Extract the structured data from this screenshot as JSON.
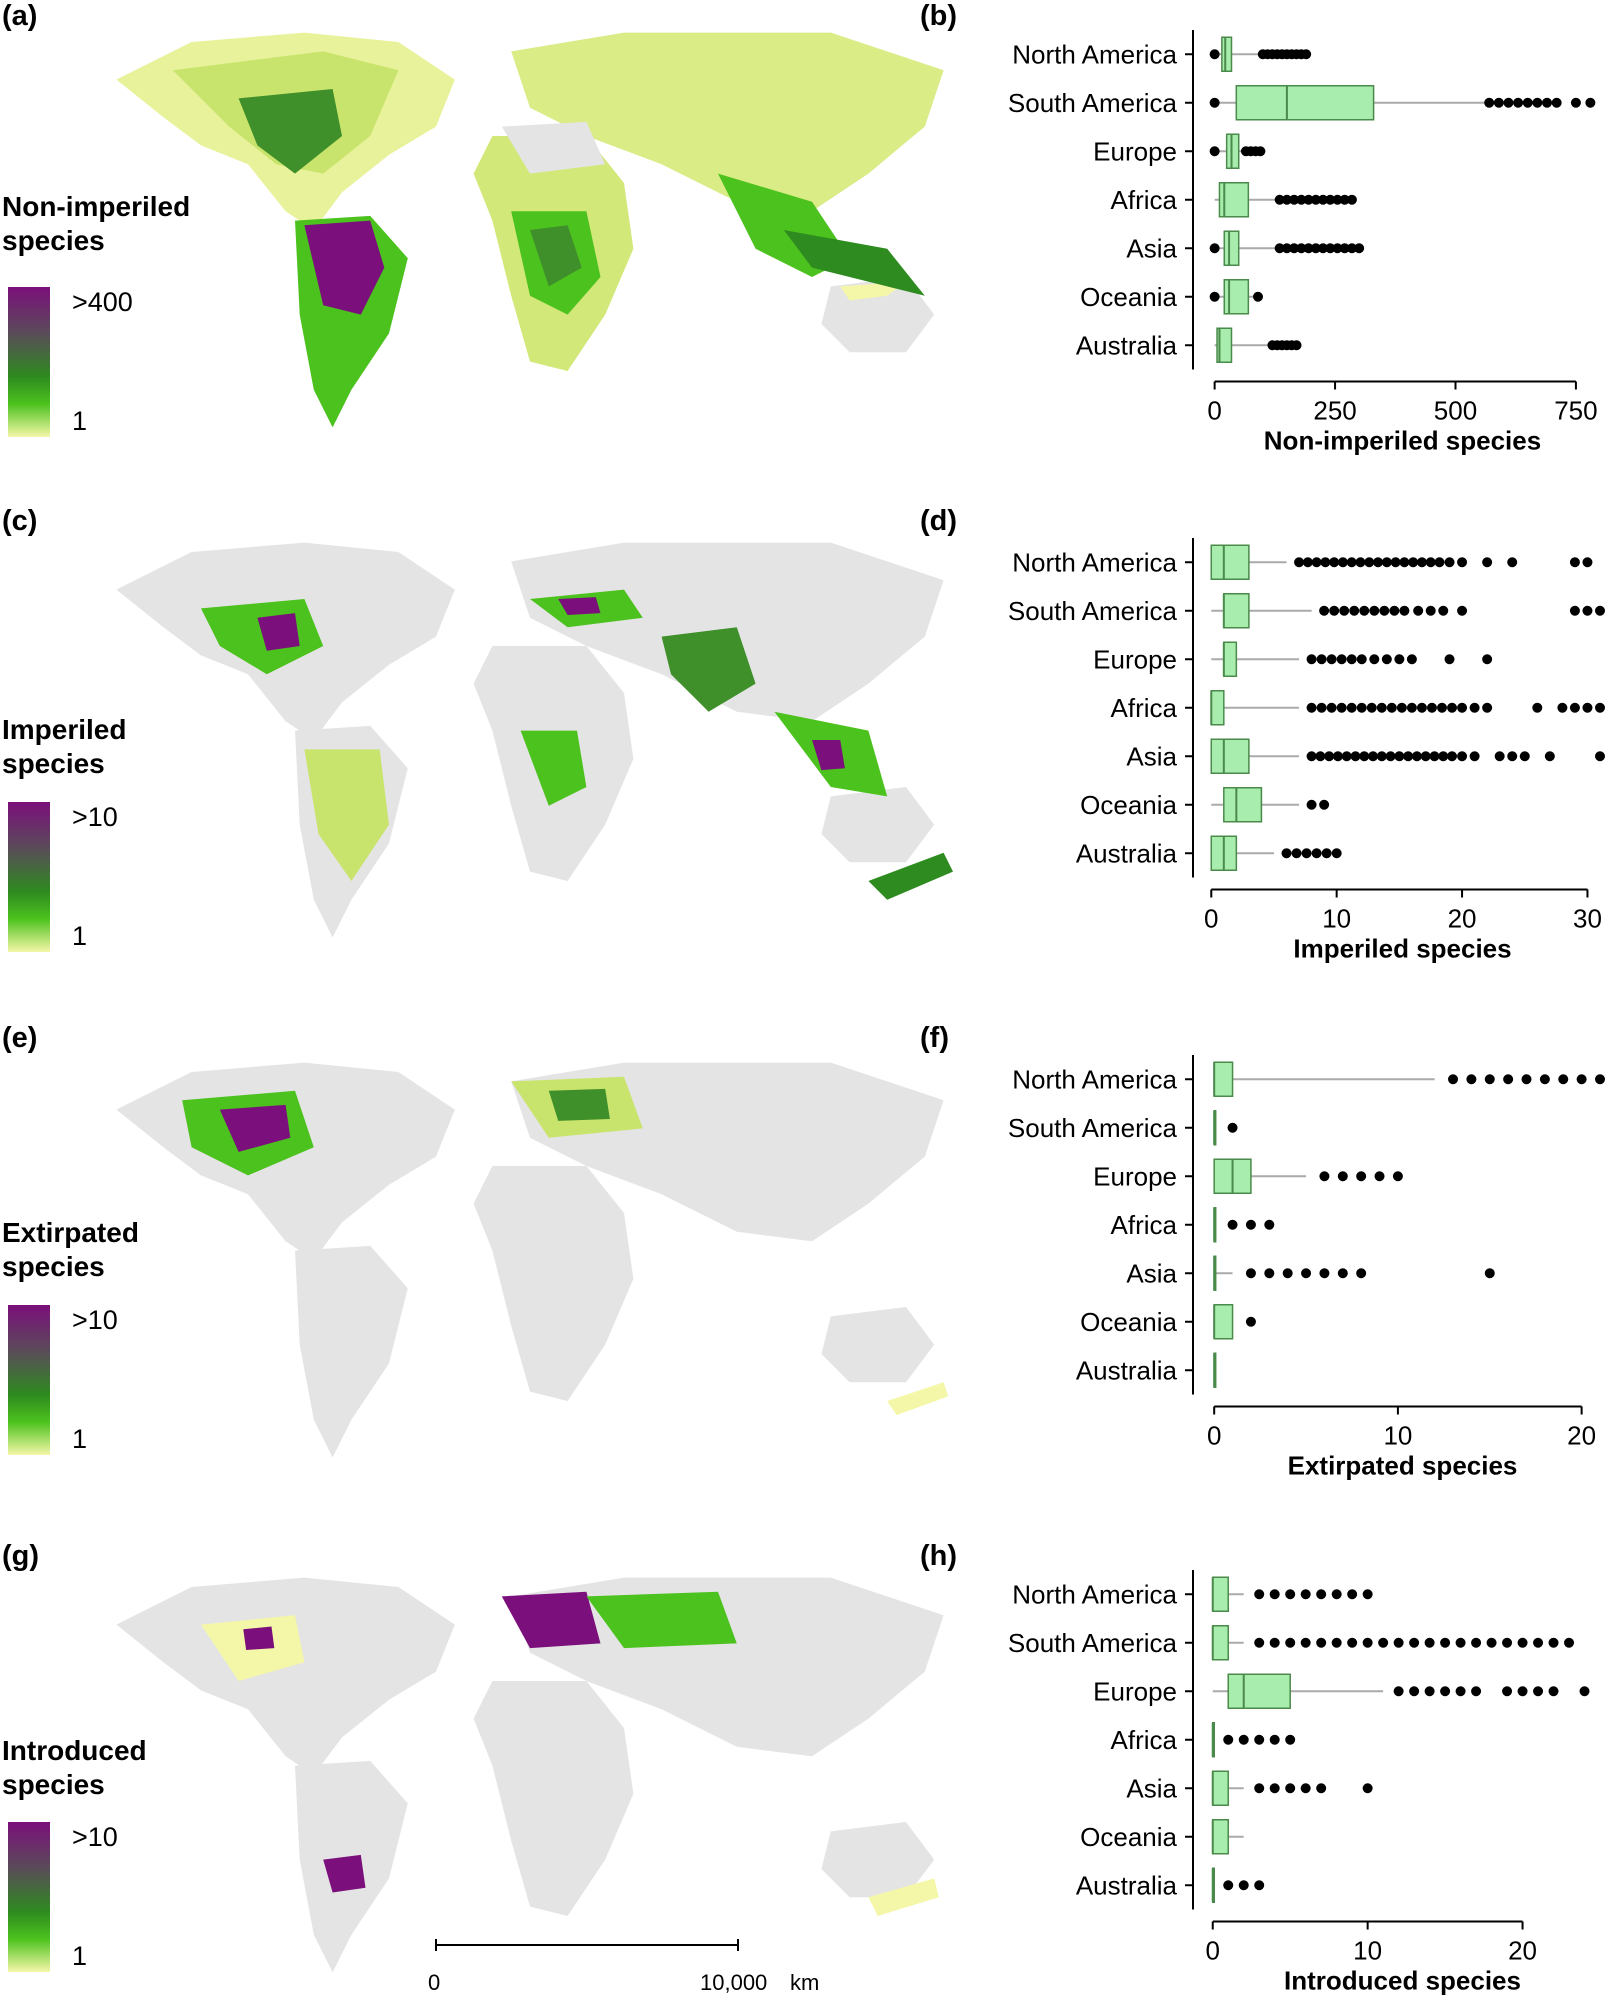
{
  "colors": {
    "land": "#e4e4e4",
    "low": "#f5f7a8",
    "mid": "#4cc21e",
    "dark": "#2e8b1f",
    "high": "#7b0f7b",
    "box_fill": "#a8ecae",
    "box_stroke": "#4a8a4a",
    "whisker": "#aaaaaa"
  },
  "panels": [
    {
      "map_letter": "(a)",
      "chart_letter": "(b)",
      "legend_title": "Non-imperiled\nspecies",
      "legend_max": ">400",
      "legend_min": "1",
      "xlabel": "Non-imperiled species",
      "xlim": [
        -20,
        800
      ],
      "ticks": [
        0,
        250,
        500,
        750
      ],
      "categories": [
        "North America",
        "South America",
        "Europe",
        "Africa",
        "Asia",
        "Oceania",
        "Australia"
      ],
      "boxes": [
        {
          "min": 0,
          "q1": 15,
          "median": 22,
          "q3": 35,
          "max": 95,
          "outliers": [
            0,
            100,
            110,
            120,
            130,
            140,
            150,
            160,
            170,
            180,
            190
          ]
        },
        {
          "min": 0,
          "q1": 45,
          "median": 150,
          "q3": 330,
          "max": 570,
          "outliers": [
            0,
            570,
            590,
            610,
            630,
            650,
            670,
            690,
            710,
            750,
            780
          ]
        },
        {
          "min": 0,
          "q1": 25,
          "median": 35,
          "q3": 50,
          "max": 60,
          "outliers": [
            0,
            65,
            75,
            85,
            95
          ]
        },
        {
          "min": 0,
          "q1": 10,
          "median": 20,
          "q3": 70,
          "max": 130,
          "outliers": [
            135,
            150,
            165,
            180,
            195,
            210,
            225,
            240,
            255,
            270,
            285
          ]
        },
        {
          "min": 0,
          "q1": 20,
          "median": 30,
          "q3": 50,
          "max": 130,
          "outliers": [
            0,
            135,
            150,
            165,
            180,
            195,
            210,
            225,
            240,
            255,
            270,
            285,
            300
          ]
        },
        {
          "min": 0,
          "q1": 20,
          "median": 30,
          "q3": 70,
          "max": 80,
          "outliers": [
            0,
            90
          ]
        },
        {
          "min": 0,
          "q1": 5,
          "median": 10,
          "q3": 35,
          "max": 110,
          "outliers": [
            120,
            130,
            140,
            150,
            160,
            170
          ]
        }
      ]
    },
    {
      "map_letter": "(c)",
      "chart_letter": "(d)",
      "legend_title": "Imperiled\nspecies",
      "legend_max": ">10",
      "legend_min": "1",
      "xlabel": "Imperiled species",
      "xlim": [
        -0.5,
        31
      ],
      "ticks": [
        0,
        10,
        20,
        30
      ],
      "categories": [
        "North America",
        "South America",
        "Europe",
        "Africa",
        "Asia",
        "Oceania",
        "Australia"
      ],
      "boxes": [
        {
          "min": 0,
          "q1": 0,
          "median": 1,
          "q3": 3,
          "max": 6,
          "outliers": [
            7,
            7.7,
            8.4,
            9.1,
            9.8,
            10.5,
            11.2,
            11.9,
            12.6,
            13.3,
            14,
            14.7,
            15.4,
            16.1,
            16.8,
            17.5,
            18.2,
            19,
            20,
            22,
            24,
            29,
            30
          ]
        },
        {
          "min": 0,
          "q1": 1,
          "median": 1,
          "q3": 3,
          "max": 8,
          "outliers": [
            9,
            9.8,
            10.6,
            11.4,
            12.2,
            13,
            13.8,
            14.6,
            15.4,
            16.5,
            17.5,
            18.5,
            20,
            29,
            30,
            31
          ]
        },
        {
          "min": 0,
          "q1": 1,
          "median": 1,
          "q3": 2,
          "max": 7,
          "outliers": [
            8,
            8.8,
            9.6,
            10.4,
            11.2,
            12,
            13,
            14,
            15,
            16,
            19,
            22
          ]
        },
        {
          "min": 0,
          "q1": 0,
          "median": 0,
          "q3": 1,
          "max": 7,
          "outliers": [
            8,
            8.8,
            9.6,
            10.4,
            11.2,
            12,
            12.8,
            13.6,
            14.4,
            15.2,
            16,
            16.8,
            17.6,
            18.4,
            19.2,
            20,
            21,
            22,
            26,
            28,
            29,
            30,
            31
          ]
        },
        {
          "min": 0,
          "q1": 0,
          "median": 1,
          "q3": 3,
          "max": 7,
          "outliers": [
            8,
            8.7,
            9.4,
            10.1,
            10.8,
            11.5,
            12.2,
            12.9,
            13.6,
            14.3,
            15,
            15.7,
            16.4,
            17.1,
            17.8,
            18.5,
            19.2,
            20,
            21,
            23,
            24,
            25,
            27,
            31
          ]
        },
        {
          "min": 0,
          "q1": 1,
          "median": 2,
          "q3": 4,
          "max": 7,
          "outliers": [
            8,
            9
          ]
        },
        {
          "min": 0,
          "q1": 0,
          "median": 1,
          "q3": 2,
          "max": 5,
          "outliers": [
            6,
            6.8,
            7.6,
            8.4,
            9.2,
            10
          ]
        }
      ]
    },
    {
      "map_letter": "(e)",
      "chart_letter": "(f)",
      "legend_title": "Extirpated\nspecies",
      "legend_max": ">10",
      "legend_min": "1",
      "xlabel": "Extirpated species",
      "xlim": [
        -0.5,
        21
      ],
      "ticks": [
        0,
        10,
        20
      ],
      "categories": [
        "North America",
        "South America",
        "Europe",
        "Africa",
        "Asia",
        "Oceania",
        "Australia"
      ],
      "boxes": [
        {
          "min": 0,
          "q1": 0,
          "median": 0,
          "q3": 1,
          "max": 12,
          "outliers": [
            13,
            14,
            15,
            16,
            17,
            18,
            19,
            20,
            21
          ]
        },
        {
          "min": 0,
          "q1": 0,
          "median": 0,
          "q3": 0,
          "max": 0,
          "outliers": [
            1
          ]
        },
        {
          "min": 0,
          "q1": 0,
          "median": 1,
          "q3": 2,
          "max": 5,
          "outliers": [
            6,
            7,
            8,
            9,
            10
          ]
        },
        {
          "min": 0,
          "q1": 0,
          "median": 0,
          "q3": 0,
          "max": 0,
          "outliers": [
            1,
            2,
            3
          ]
        },
        {
          "min": 0,
          "q1": 0,
          "median": 0,
          "q3": 0,
          "max": 1,
          "outliers": [
            2,
            3,
            4,
            5,
            6,
            7,
            8,
            15
          ]
        },
        {
          "min": 0,
          "q1": 0,
          "median": 0,
          "q3": 1,
          "max": 1,
          "outliers": [
            2
          ]
        },
        {
          "min": 0,
          "q1": 0,
          "median": 0,
          "q3": 0,
          "max": 0,
          "outliers": []
        }
      ]
    },
    {
      "map_letter": "(g)",
      "chart_letter": "(h)",
      "legend_title": "Introduced\nspecies",
      "legend_max": ">10",
      "legend_min": "1",
      "xlabel": "Introduced species",
      "xlim": [
        -0.5,
        25
      ],
      "ticks": [
        0,
        10,
        20
      ],
      "categories": [
        "North America",
        "South America",
        "Europe",
        "Africa",
        "Asia",
        "Oceania",
        "Australia"
      ],
      "boxes": [
        {
          "min": 0,
          "q1": 0,
          "median": 0,
          "q3": 1,
          "max": 2,
          "outliers": [
            3,
            4,
            5,
            6,
            7,
            8,
            9,
            10
          ]
        },
        {
          "min": 0,
          "q1": 0,
          "median": 0,
          "q3": 1,
          "max": 2,
          "outliers": [
            3,
            4,
            5,
            6,
            7,
            8,
            9,
            10,
            11,
            12,
            13,
            14,
            15,
            16,
            17,
            18,
            19,
            20,
            21,
            22,
            23
          ]
        },
        {
          "min": 0,
          "q1": 1,
          "median": 2,
          "q3": 5,
          "max": 11,
          "outliers": [
            12,
            13,
            14,
            15,
            16,
            17,
            19,
            20,
            21,
            22,
            24
          ]
        },
        {
          "min": 0,
          "q1": 0,
          "median": 0,
          "q3": 0,
          "max": 0,
          "outliers": [
            1,
            2,
            3,
            4,
            5
          ]
        },
        {
          "min": 0,
          "q1": 0,
          "median": 0,
          "q3": 1,
          "max": 2,
          "outliers": [
            3,
            4,
            5,
            6,
            7,
            10
          ]
        },
        {
          "min": 0,
          "q1": 0,
          "median": 0,
          "q3": 1,
          "max": 2,
          "outliers": []
        },
        {
          "min": 0,
          "q1": 0,
          "median": 0,
          "q3": 0,
          "max": 0,
          "outliers": [
            1,
            2,
            3
          ]
        }
      ]
    }
  ],
  "scale_bar": {
    "start_label": "0",
    "end_label": "10,000",
    "unit": "km"
  }
}
